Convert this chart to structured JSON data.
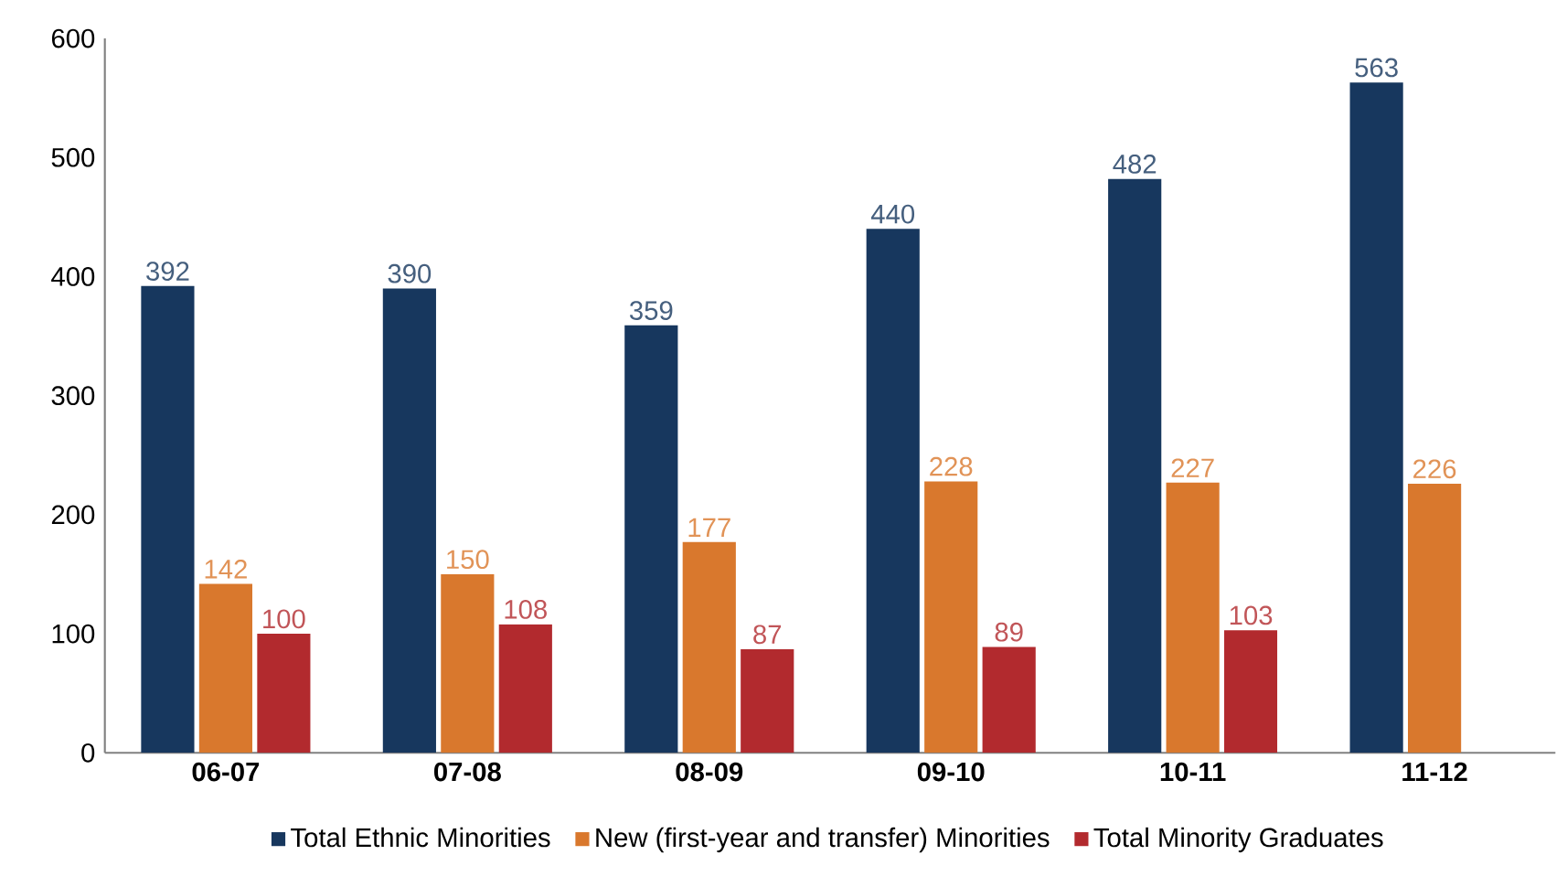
{
  "chart_data": {
    "type": "bar",
    "categories": [
      "06-07",
      "07-08",
      "08-09",
      "09-10",
      "10-11",
      "11-12"
    ],
    "series": [
      {
        "name": "Total Ethnic Minorities",
        "color": "#17375e",
        "values": [
          392,
          390,
          359,
          440,
          482,
          563
        ]
      },
      {
        "name": "New (first-year and transfer) Minorities",
        "color": "#d9782d",
        "values": [
          142,
          150,
          177,
          228,
          227,
          226
        ]
      },
      {
        "name": "Total Minority Graduates",
        "color": "#b22a2e",
        "values": [
          100,
          108,
          87,
          89,
          103,
          null
        ]
      }
    ],
    "ylim": [
      0,
      600
    ],
    "yticks": [
      0,
      100,
      200,
      300,
      400,
      500,
      600
    ],
    "data_labels": true,
    "grid": false,
    "legend": "bottom"
  }
}
